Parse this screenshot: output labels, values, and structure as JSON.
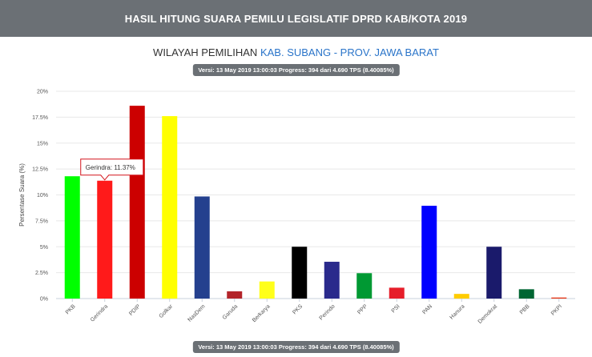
{
  "header": {
    "title": "HASIL HITUNG SUARA PEMILU LEGISLATIF DPRD KAB/KOTA 2019"
  },
  "region": {
    "label": "WILAYAH PEMILIHAN",
    "value": "KAB. SUBANG - PROV. JAWA BARAT"
  },
  "version_badge": "Versi: 13 May 2019 13:00:03 Progress: 394 dari 4.690 TPS (8.40085%)",
  "tooltip": {
    "text": "Gerindra: 11.37%",
    "category": "Gerindra",
    "border_color": "#d4141b"
  },
  "chart_data": {
    "type": "bar",
    "ylabel": "Persentase Suara (%)",
    "ylim": [
      0,
      20
    ],
    "yticks": [
      "0%",
      "2.5%",
      "5%",
      "7.5%",
      "10%",
      "12.5%",
      "15%",
      "17.5%",
      "20%"
    ],
    "ytick_values": [
      0,
      2.5,
      5,
      7.5,
      10,
      12.5,
      15,
      17.5,
      20
    ],
    "grid": true,
    "categories": [
      "PKB",
      "Gerindra",
      "PDIP",
      "Golkar",
      "NasDem",
      "Garuda",
      "Berkarya",
      "PKS",
      "Perindo",
      "PPP",
      "PSI",
      "PAN",
      "Hanura",
      "Demokrat",
      "PBB",
      "PKPI"
    ],
    "values": [
      11.8,
      11.37,
      18.6,
      17.6,
      9.85,
      0.7,
      1.65,
      5.0,
      3.55,
      2.45,
      1.05,
      8.95,
      0.45,
      5.0,
      0.9,
      0.1
    ],
    "colors": [
      "#00ff00",
      "#ff1a1a",
      "#cc0000",
      "#ffff00",
      "#24408e",
      "#b3242a",
      "#ffff1a",
      "#000000",
      "#2a2a8c",
      "#009933",
      "#e61e2a",
      "#0000ff",
      "#ffcc00",
      "#1a1a6b",
      "#006633",
      "#e63312"
    ]
  }
}
